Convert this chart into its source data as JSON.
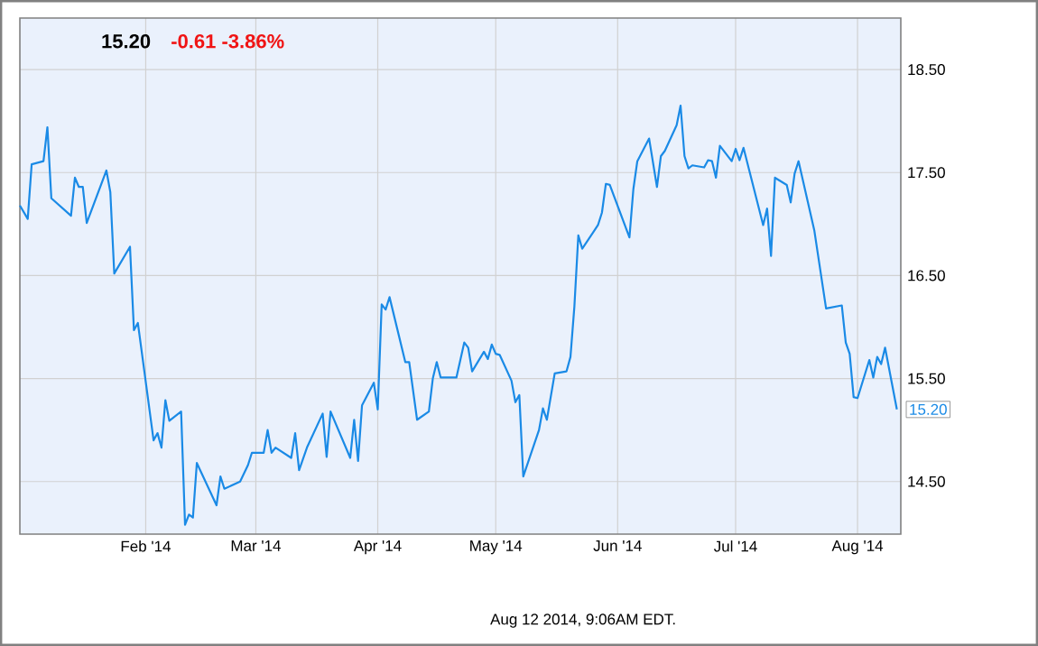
{
  "chart_data": {
    "type": "line",
    "title": "15.20",
    "subtitle": "-0.61  -3.86%",
    "x": [
      "2013-12-31",
      "2014-01-02",
      "2014-01-03",
      "2014-01-06",
      "2014-01-07",
      "2014-01-08",
      "2014-01-13",
      "2014-01-14",
      "2014-01-15",
      "2014-01-16",
      "2014-01-17",
      "2014-01-22",
      "2014-01-23",
      "2014-01-24",
      "2014-01-28",
      "2014-01-29",
      "2014-01-30",
      "2014-02-03",
      "2014-02-04",
      "2014-02-05",
      "2014-02-06",
      "2014-02-07",
      "2014-02-10",
      "2014-02-11",
      "2014-02-12",
      "2014-02-13",
      "2014-02-14",
      "2014-02-19",
      "2014-02-20",
      "2014-02-21",
      "2014-02-25",
      "2014-02-27",
      "2014-02-28",
      "2014-03-03",
      "2014-03-04",
      "2014-03-05",
      "2014-03-06",
      "2014-03-10",
      "2014-03-11",
      "2014-03-12",
      "2014-03-14",
      "2014-03-18",
      "2014-03-19",
      "2014-03-20",
      "2014-03-25",
      "2014-03-26",
      "2014-03-27",
      "2014-03-28",
      "2014-03-31",
      "2014-04-01",
      "2014-04-02",
      "2014-04-03",
      "2014-04-04",
      "2014-04-08",
      "2014-04-09",
      "2014-04-11",
      "2014-04-14",
      "2014-04-15",
      "2014-04-16",
      "2014-04-17",
      "2014-04-21",
      "2014-04-23",
      "2014-04-24",
      "2014-04-25",
      "2014-04-28",
      "2014-04-29",
      "2014-04-30",
      "2014-05-01",
      "2014-05-02",
      "2014-05-05",
      "2014-05-06",
      "2014-05-07",
      "2014-05-08",
      "2014-05-12",
      "2014-05-13",
      "2014-05-14",
      "2014-05-16",
      "2014-05-19",
      "2014-05-20",
      "2014-05-21",
      "2014-05-22",
      "2014-05-23",
      "2014-05-27",
      "2014-05-28",
      "2014-05-29",
      "2014-05-30",
      "2014-06-04",
      "2014-06-05",
      "2014-06-06",
      "2014-06-09",
      "2014-06-11",
      "2014-06-12",
      "2014-06-13",
      "2014-06-16",
      "2014-06-17",
      "2014-06-18",
      "2014-06-19",
      "2014-06-20",
      "2014-06-23",
      "2014-06-24",
      "2014-06-25",
      "2014-06-26",
      "2014-06-27",
      "2014-06-30",
      "2014-07-01",
      "2014-07-02",
      "2014-07-03",
      "2014-07-08",
      "2014-07-09",
      "2014-07-10",
      "2014-07-11",
      "2014-07-14",
      "2014-07-15",
      "2014-07-16",
      "2014-07-17",
      "2014-07-21",
      "2014-07-24",
      "2014-07-28",
      "2014-07-29",
      "2014-07-30",
      "2014-07-31",
      "2014-08-01",
      "2014-08-04",
      "2014-08-05",
      "2014-08-06",
      "2014-08-07",
      "2014-08-08",
      "2014-08-11"
    ],
    "series": [
      {
        "color": "#1a8ae6",
        "values": [
          17.18,
          17.05,
          17.58,
          17.61,
          17.94,
          17.25,
          17.08,
          17.45,
          17.36,
          17.36,
          17.01,
          17.52,
          17.31,
          16.52,
          16.78,
          15.97,
          16.04,
          14.9,
          14.97,
          14.83,
          15.29,
          15.09,
          15.18,
          14.08,
          14.18,
          14.15,
          14.68,
          14.27,
          14.55,
          14.43,
          14.5,
          14.66,
          14.78,
          14.78,
          15.0,
          14.78,
          14.83,
          14.73,
          14.97,
          14.61,
          14.83,
          15.16,
          14.74,
          15.18,
          14.73,
          15.1,
          14.7,
          15.24,
          15.46,
          15.2,
          16.22,
          16.17,
          16.29,
          15.66,
          15.66,
          15.1,
          15.18,
          15.5,
          15.66,
          15.51,
          15.51,
          15.85,
          15.8,
          15.57,
          15.76,
          15.69,
          15.83,
          15.74,
          15.73,
          15.48,
          15.27,
          15.34,
          14.55,
          15.0,
          15.21,
          15.1,
          15.55,
          15.57,
          15.71,
          16.2,
          16.89,
          16.76,
          16.99,
          17.11,
          17.39,
          17.38,
          16.87,
          17.34,
          17.61,
          17.83,
          17.36,
          17.66,
          17.71,
          17.96,
          18.15,
          17.66,
          17.54,
          17.57,
          17.55,
          17.62,
          17.61,
          17.45,
          17.76,
          17.61,
          17.73,
          17.62,
          17.74,
          16.99,
          17.15,
          16.69,
          17.45,
          17.38,
          17.21,
          17.49,
          17.61,
          16.94,
          16.18,
          16.21,
          15.85,
          15.74,
          15.32,
          15.31,
          15.68,
          15.51,
          15.71,
          15.64,
          15.8,
          15.2
        ]
      }
    ],
    "xlim": [
      "2013-12-31",
      "2014-08-12"
    ],
    "xticks": [
      {
        "value": "2014-02-01",
        "label": "Feb '14"
      },
      {
        "value": "2014-03-01",
        "label": "Mar '14"
      },
      {
        "value": "2014-04-01",
        "label": "Apr '14"
      },
      {
        "value": "2014-05-01",
        "label": "May '14"
      },
      {
        "value": "2014-06-01",
        "label": "Jun '14"
      },
      {
        "value": "2014-07-01",
        "label": "Jul '14"
      },
      {
        "value": "2014-08-01",
        "label": "Aug '14"
      }
    ],
    "ylim": [
      13.99,
      19.0
    ],
    "yticks": [
      {
        "value": 14.5,
        "label": "14.50"
      },
      {
        "value": 15.5,
        "label": "15.50"
      },
      {
        "value": 16.5,
        "label": "16.50"
      },
      {
        "value": 17.5,
        "label": "17.50"
      },
      {
        "value": 18.5,
        "label": "18.50"
      }
    ],
    "grid": true,
    "marker": "none",
    "line_style": "solid",
    "annotations": [
      {
        "text": "15.20",
        "x": "2014-08-11",
        "y": 15.2
      },
      "Aug 12 2014, 9:06AM EDT."
    ]
  }
}
